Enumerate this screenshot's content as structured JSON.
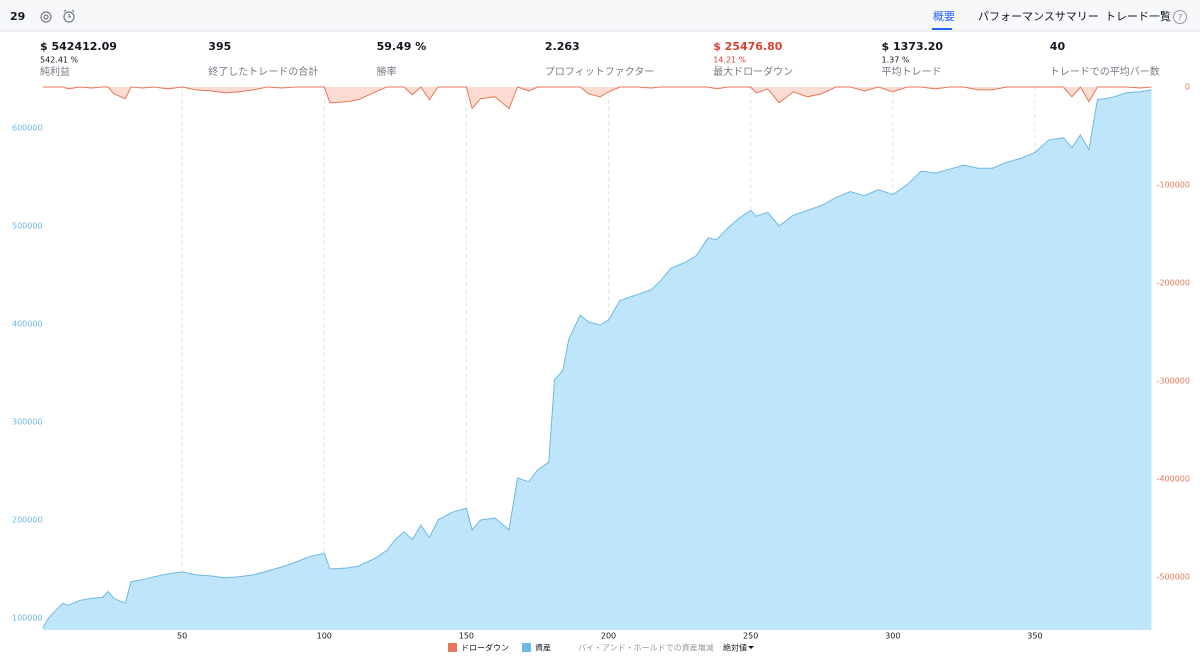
{
  "header": {
    "session": "29",
    "tabs": [
      "概要",
      "パフォーマンスサマリー",
      "トレード一覧"
    ],
    "active_tab": 0
  },
  "stats": [
    {
      "value": "$ 542412.09",
      "sub": "542.41 %",
      "label": "純利益"
    },
    {
      "value": "395",
      "label": "終了したトレードの合計"
    },
    {
      "value": "59.49 %",
      "label": "勝率"
    },
    {
      "value": "2.263",
      "label": "プロフィットファクター"
    },
    {
      "value": "$ 25476.80",
      "sub": "14.21 %",
      "label": "最大ドローダウン",
      "color": "#d9432f"
    },
    {
      "value": "$ 1373.20",
      "sub": "1.37 %",
      "label": "平均トレード"
    },
    {
      "value": "40",
      "label": "トレードでの平均バー数"
    }
  ],
  "chart_data": {
    "type": "area",
    "x": [
      1,
      3,
      8,
      10,
      14,
      18,
      22,
      24,
      26,
      30,
      32,
      36,
      40,
      45,
      50,
      55,
      60,
      65,
      70,
      75,
      80,
      85,
      90,
      95,
      100,
      102,
      108,
      112,
      118,
      122,
      125,
      128,
      131,
      134,
      137,
      140,
      145,
      150,
      152,
      155,
      160,
      165,
      168,
      172,
      175,
      179,
      181,
      184,
      186,
      190,
      193,
      197,
      200,
      204,
      210,
      215,
      218,
      222,
      227,
      231,
      235,
      238,
      242,
      246,
      250,
      252,
      256,
      260,
      265,
      270,
      275,
      280,
      285,
      290,
      295,
      300,
      305,
      310,
      315,
      320,
      325,
      330,
      335,
      340,
      345,
      350,
      355,
      360,
      363,
      366,
      369,
      372,
      377,
      382,
      387,
      391
    ],
    "series": [
      {
        "name": "ドローダウン",
        "color": "#e8775a",
        "fill": "#fbdcd3",
        "axis": "y2",
        "values": [
          0,
          0,
          0,
          -2000,
          0,
          -1000,
          0,
          0,
          -7000,
          -12000,
          0,
          -1000,
          0,
          -2000,
          0,
          -3000,
          -4000,
          -6000,
          -5000,
          -3000,
          0,
          -1000,
          0,
          0,
          0,
          -16000,
          -15000,
          -13000,
          -5000,
          0,
          0,
          0,
          -8000,
          0,
          -13000,
          0,
          0,
          0,
          -22000,
          -12000,
          -10000,
          -22000,
          0,
          -4000,
          0,
          0,
          0,
          0,
          0,
          0,
          -7000,
          -10000,
          -5000,
          0,
          0,
          -1000,
          0,
          0,
          0,
          0,
          0,
          -2000,
          0,
          0,
          0,
          -6000,
          -2000,
          -16000,
          -5000,
          -10000,
          -7000,
          0,
          0,
          -4000,
          0,
          -5000,
          0,
          0,
          -2000,
          0,
          0,
          -3000,
          -3000,
          0,
          0,
          0,
          0,
          0,
          -10000,
          0,
          -15000,
          0,
          0,
          0,
          -1000,
          0
        ]
      },
      {
        "name": "資産",
        "color": "#6cb8e6",
        "fill": "#bfe5fb",
        "values": [
          90000,
          100000,
          115000,
          113000,
          118000,
          120000,
          121000,
          127000,
          120000,
          115000,
          137000,
          139000,
          142000,
          145000,
          147000,
          144000,
          143000,
          141000,
          142000,
          144000,
          148000,
          152000,
          157000,
          163000,
          166000,
          150000,
          151000,
          153000,
          161000,
          169000,
          180000,
          188000,
          180000,
          195000,
          182000,
          200000,
          208000,
          212000,
          190000,
          200000,
          202000,
          190000,
          243000,
          239000,
          251000,
          259000,
          343000,
          353000,
          384000,
          409000,
          402000,
          399000,
          404000,
          424000,
          430000,
          435000,
          443000,
          457000,
          463000,
          470000,
          488000,
          486000,
          498000,
          508000,
          516000,
          510000,
          514000,
          500000,
          511000,
          516000,
          521000,
          529000,
          535000,
          531000,
          537000,
          532000,
          542000,
          556000,
          554000,
          558000,
          562000,
          559000,
          559000,
          565000,
          569000,
          575000,
          588000,
          590000,
          580000,
          593000,
          578000,
          629000,
          631000,
          636000,
          637000,
          639000
        ]
      }
    ],
    "legend_extra": "バイ・アンド・ホールドでの資産増減",
    "scale_mode": "絶対値",
    "xlim": [
      0,
      394
    ],
    "xticks": [
      50,
      100,
      150,
      200,
      250,
      300,
      350
    ],
    "ylim": [
      87755,
      642857
    ],
    "yticks": [
      100000,
      200000,
      300000,
      400000,
      500000,
      600000
    ],
    "y2lim": [
      -554000,
      1000
    ],
    "y2ticks": [
      0,
      -100000,
      -200000,
      -300000,
      -400000,
      -500000
    ],
    "grid": true
  }
}
